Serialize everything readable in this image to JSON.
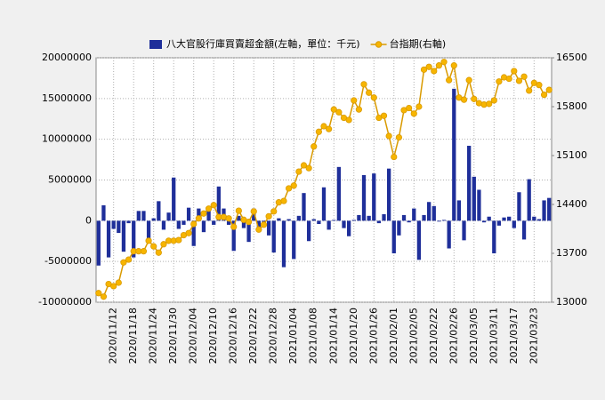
{
  "chart_data": {
    "type": "bar",
    "categories": [
      null,
      null,
      null,
      "2020/11/12",
      null,
      null,
      null,
      "2020/11/18",
      null,
      null,
      null,
      "2020/11/24",
      null,
      null,
      null,
      "2020/11/30",
      null,
      null,
      null,
      "2020/12/04",
      null,
      null,
      null,
      "2020/12/10",
      null,
      null,
      null,
      "2020/12/16",
      null,
      null,
      null,
      "2020/12/22",
      null,
      null,
      null,
      "2020/12/28",
      null,
      null,
      null,
      "2021/01/04",
      null,
      null,
      null,
      "2021/01/08",
      null,
      null,
      null,
      "2021/01/14",
      null,
      null,
      null,
      "2021/01/20",
      null,
      null,
      null,
      "2021/01/26",
      null,
      null,
      null,
      "2021/02/01",
      null,
      null,
      null,
      "2021/02/05",
      null,
      null,
      null,
      "2021/02/22",
      null,
      null,
      null,
      "2021/02/26",
      null,
      null,
      null,
      "2021/03/05",
      null,
      null,
      null,
      "2021/03/11",
      null,
      null,
      null,
      "2021/03/17",
      null,
      null,
      null,
      "2021/03/23",
      null,
      null,
      null
    ],
    "series": [
      {
        "name": "八大官股行庫買賣超金額(左軸，單位：千元)",
        "type": "bar",
        "color": "#1f2f9a",
        "values": [
          -5500000,
          1900000,
          -4500000,
          -1000000,
          -1500000,
          -3800000,
          -300000,
          -4500000,
          1200000,
          1200000,
          -2500000,
          300000,
          2400000,
          -1100000,
          1000000,
          5300000,
          -1000000,
          -500000,
          1600000,
          -3100000,
          1500000,
          -1400000,
          1500000,
          -500000,
          4200000,
          1500000,
          -500000,
          -3700000,
          600000,
          -900000,
          -2600000,
          1500000,
          -1100000,
          -300000,
          -1800000,
          -3900000,
          300000,
          -5700000,
          200000,
          -4700000,
          600000,
          3400000,
          -2500000,
          200000,
          -400000,
          4100000,
          -1100000,
          100000,
          6600000,
          -900000,
          -1900000,
          100000,
          700000,
          5600000,
          600000,
          5800000,
          -300000,
          800000,
          6400000,
          -4000000,
          -1800000,
          700000,
          -200000,
          1500000,
          -4800000,
          700000,
          2300000,
          1800000,
          -100000,
          100000,
          -3400000,
          16200000,
          2500000,
          -2400000,
          9200000,
          5400000,
          3800000,
          -200000,
          500000,
          -4000000,
          -600000,
          400000,
          500000,
          -900000,
          3500000,
          -2300000,
          5100000,
          500000,
          200000,
          2500000,
          2800000
        ]
      },
      {
        "name": "台指期(右軸)",
        "type": "line",
        "axis": "y2",
        "color": "#d99a00",
        "marker_color": "#f7b500",
        "values": [
          13130,
          13080,
          13260,
          13230,
          13280,
          13570,
          13610,
          13730,
          13730,
          13730,
          13880,
          13800,
          13710,
          13830,
          13880,
          13880,
          13890,
          13960,
          13990,
          14120,
          14200,
          14270,
          14340,
          14390,
          14220,
          14220,
          14200,
          14080,
          14310,
          14180,
          14150,
          14300,
          14040,
          14110,
          14230,
          14300,
          14430,
          14450,
          14630,
          14670,
          14870,
          14960,
          14920,
          15230,
          15440,
          15520,
          15480,
          15760,
          15720,
          15640,
          15610,
          15890,
          15760,
          16120,
          16000,
          15930,
          15640,
          15670,
          15380,
          15080,
          15360,
          15750,
          15780,
          15700,
          15800,
          16330,
          16370,
          16310,
          16390,
          16440,
          16180,
          16390,
          15930,
          15900,
          16180,
          15910,
          15850,
          15830,
          15840,
          15890,
          16160,
          16220,
          16200,
          16310,
          16170,
          16230,
          16030,
          16140,
          16110,
          15970,
          16040
        ]
      }
    ],
    "ylim": [
      -10000000,
      20000000
    ],
    "yticks": [
      -10000000,
      -5000000,
      0,
      5000000,
      10000000,
      15000000,
      20000000
    ],
    "y2lim": [
      13000,
      16500
    ],
    "y2ticks": [
      13000,
      13700,
      14400,
      15100,
      15800,
      16500
    ],
    "grid": true,
    "legend": "top"
  }
}
